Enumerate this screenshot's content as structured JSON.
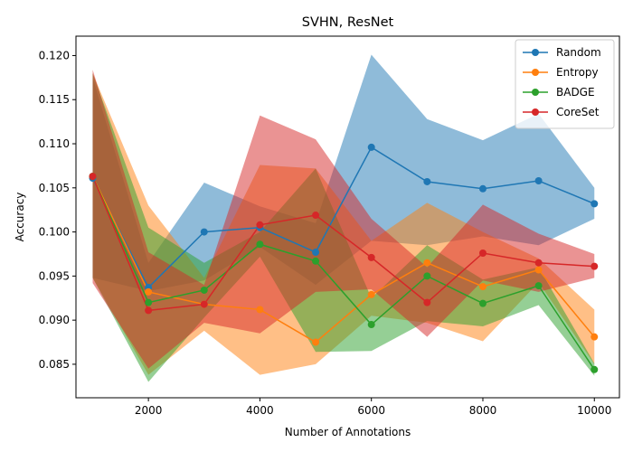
{
  "chart_data": {
    "type": "line",
    "title": "SVHN, ResNet",
    "xlabel": "Number of Annotations",
    "ylabel": "Accuracy",
    "xlim": [
      700,
      10450
    ],
    "ylim": [
      0.0812,
      0.1222
    ],
    "x": [
      1000,
      2000,
      3000,
      4000,
      5000,
      6000,
      7000,
      8000,
      9000,
      10000
    ],
    "xticks": [
      2000,
      4000,
      6000,
      8000,
      10000
    ],
    "xtick_labels": [
      "2000",
      "4000",
      "6000",
      "8000",
      "10000"
    ],
    "yticks": [
      0.085,
      0.09,
      0.095,
      0.1,
      0.105,
      0.11,
      0.115,
      0.12
    ],
    "ytick_labels": [
      "0.085",
      "0.090",
      "0.095",
      "0.100",
      "0.105",
      "0.110",
      "0.115",
      "0.120"
    ],
    "grid": false,
    "legend_position": "top-right",
    "series": [
      {
        "name": "Random",
        "color": "#1f77b4",
        "values": [
          0.1061,
          0.0937,
          0.1,
          0.1005,
          0.0977,
          0.1096,
          0.1057,
          0.1049,
          0.1058,
          0.1032
        ],
        "lower": [
          0.0948,
          0.0933,
          0.0945,
          0.0983,
          0.094,
          0.099,
          0.0985,
          0.0995,
          0.0985,
          0.1015
        ],
        "upper": [
          0.1175,
          0.0965,
          0.1056,
          0.1029,
          0.101,
          0.1201,
          0.1128,
          0.1104,
          0.1134,
          0.105
        ]
      },
      {
        "name": "Entropy",
        "color": "#ff7f0e",
        "values": [
          0.1063,
          0.0932,
          0.0918,
          0.0912,
          0.0875,
          0.0929,
          0.0965,
          0.0938,
          0.0957,
          0.0881
        ],
        "lower": [
          0.0948,
          0.0838,
          0.0888,
          0.0838,
          0.085,
          0.0905,
          0.0897,
          0.0876,
          0.0943,
          0.085
        ],
        "upper": [
          0.118,
          0.103,
          0.0948,
          0.1076,
          0.1072,
          0.099,
          0.1033,
          0.1,
          0.097,
          0.0912
        ]
      },
      {
        "name": "BADGE",
        "color": "#2ca02c",
        "values": [
          0.1063,
          0.092,
          0.0934,
          0.0986,
          0.0967,
          0.0895,
          0.095,
          0.0919,
          0.0939,
          0.0844
        ],
        "lower": [
          0.0948,
          0.083,
          0.0903,
          0.0972,
          0.0864,
          0.0865,
          0.0899,
          0.0893,
          0.0917,
          0.0837
        ],
        "upper": [
          0.118,
          0.1005,
          0.0965,
          0.1,
          0.1072,
          0.0925,
          0.0985,
          0.0946,
          0.096,
          0.0851
        ]
      },
      {
        "name": "CoreSet",
        "color": "#d62728",
        "values": [
          0.1063,
          0.0911,
          0.0918,
          0.1008,
          0.1019,
          0.0971,
          0.092,
          0.0976,
          0.0965,
          0.0961
        ],
        "lower": [
          0.0942,
          0.0845,
          0.0897,
          0.0885,
          0.0932,
          0.0935,
          0.0881,
          0.0945,
          0.0932,
          0.0948
        ],
        "upper": [
          0.1184,
          0.0977,
          0.094,
          0.1132,
          0.1105,
          0.1015,
          0.096,
          0.1031,
          0.0998,
          0.0975
        ]
      }
    ]
  }
}
